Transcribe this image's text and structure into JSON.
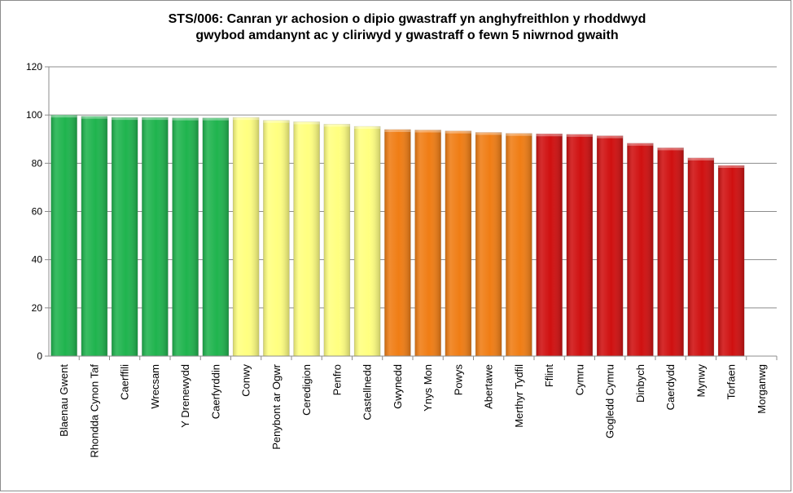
{
  "chart_data": {
    "type": "bar",
    "title_lines": [
      "STS/006: Canran yr achosion o dipio gwastraff yn anghyfreithlon y rhoddwyd",
      "gwybod amdanynt ac y cliriwyd y gwastraff o fewn 5 niwrnod gwaith"
    ],
    "categories": [
      "Blaenau Gwent",
      "Rhondda Cynon Taf",
      "Caerffili",
      "Wrecsam",
      "Y Drenewydd",
      "Caerfyrddin",
      "Conwy",
      "Penybont ar Ogwr",
      "Ceredigion",
      "Penfro",
      "Castellnedd",
      "Gwynedd",
      "Ynys Mon",
      "Powys",
      "Abertawe",
      "Merthyr Tydfil",
      "Fflint",
      "Cymru",
      "Gogledd Cymru",
      "Dinbych",
      "Caerdydd",
      "Mynwy",
      "Torfaen",
      "Morganwg"
    ],
    "values": [
      100,
      99.5,
      99,
      99,
      98.8,
      98.8,
      99,
      97.8,
      97.2,
      96.2,
      95.3,
      94,
      93.8,
      93.4,
      92.8,
      92.4,
      92.2,
      92,
      91.4,
      88.3,
      86.4,
      82.2,
      79.1,
      null
    ],
    "colors": [
      "#1fb44e",
      "#1fb44e",
      "#1fb44e",
      "#1fb44e",
      "#1fb44e",
      "#1fb44e",
      "#ffff80",
      "#ffff80",
      "#ffff80",
      "#ffff80",
      "#ffff80",
      "#f07d14",
      "#f07d14",
      "#f07d14",
      "#f07d14",
      "#f07d14",
      "#d01010",
      "#d01010",
      "#d01010",
      "#d01010",
      "#d01010",
      "#d01010",
      "#d01010",
      "#d01010"
    ],
    "yticks": [
      0,
      20,
      40,
      60,
      80,
      100,
      120
    ],
    "ylim": [
      0,
      120
    ],
    "grid": true
  }
}
